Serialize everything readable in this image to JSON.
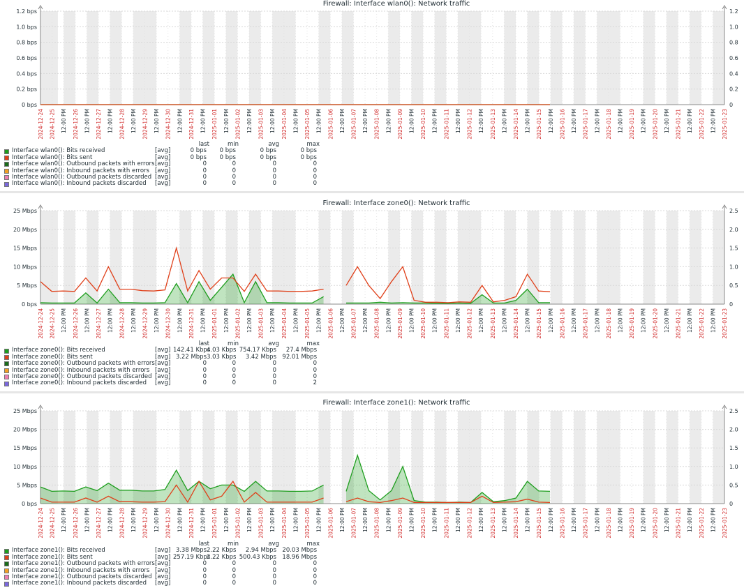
{
  "panels": [
    {
      "title": "Firewall: Interface wlan0(): Network traffic",
      "left_ticks": [
        "0 bps",
        "0.2 bps",
        "0.4 bps",
        "0.6 bps",
        "0.8 bps",
        "1.0 bps",
        "1.2 bps"
      ],
      "right_ticks": [
        "0",
        "0.2",
        "0.4",
        "0.6",
        "0.8",
        "1.0",
        "1.2"
      ],
      "legend_headers": [
        "last",
        "min",
        "avg",
        "max"
      ],
      "legend": [
        {
          "name": "Interface wlan0(): Bits received",
          "fn": "[avg]",
          "last": "0 bps",
          "min": "0 bps",
          "avg": "0 bps",
          "max": "0 bps",
          "color": "#1e9e1e"
        },
        {
          "name": "Interface wlan0(): Bits sent",
          "fn": "[avg]",
          "last": "0 bps",
          "min": "0 bps",
          "avg": "0 bps",
          "max": "0 bps",
          "color": "#e0401a"
        },
        {
          "name": "Interface wlan0(): Outbound packets with errors",
          "fn": "[avg]",
          "last": "0",
          "min": "0",
          "avg": "0",
          "max": "0",
          "color": "#1a6b1a"
        },
        {
          "name": "Interface wlan0(): Inbound packets with errors",
          "fn": "[avg]",
          "last": "0",
          "min": "0",
          "avg": "0",
          "max": "0",
          "color": "#f2a024"
        },
        {
          "name": "Interface wlan0(): Outbound packets discarded",
          "fn": "[avg]",
          "last": "0",
          "min": "0",
          "avg": "0",
          "max": "0",
          "color": "#ee7fb0"
        },
        {
          "name": "Interface wlan0(): Inbound packets discarded",
          "fn": "[avg]",
          "last": "0",
          "min": "0",
          "avg": "0",
          "max": "0",
          "color": "#7a68dd"
        }
      ]
    },
    {
      "title": "Firewall: Interface zone0(): Network traffic",
      "left_ticks": [
        "0 bps",
        "5 Mbps",
        "10 Mbps",
        "15 Mbps",
        "20 Mbps",
        "25 Mbps"
      ],
      "right_ticks": [
        "0",
        "0.5",
        "1.0",
        "1.5",
        "2.0",
        "2.5"
      ],
      "legend_headers": [
        "last",
        "min",
        "avg",
        "max"
      ],
      "legend": [
        {
          "name": "Interface zone0(): Bits received",
          "fn": "[avg]",
          "last": "142.41 Kbps",
          "min": "4.03 Kbps",
          "avg": "754.17 Kbps",
          "max": "27.4 Mbps",
          "color": "#1e9e1e"
        },
        {
          "name": "Interface zone0(): Bits sent",
          "fn": "[avg]",
          "last": "3.22 Mbps",
          "min": "3.03 Kbps",
          "avg": "3.42 Mbps",
          "max": "92.01 Mbps",
          "color": "#e0401a"
        },
        {
          "name": "Interface zone0(): Outbound packets with errors",
          "fn": "[avg]",
          "last": "0",
          "min": "0",
          "avg": "0",
          "max": "0",
          "color": "#1a6b1a"
        },
        {
          "name": "Interface zone0(): Inbound packets with errors",
          "fn": "[avg]",
          "last": "0",
          "min": "0",
          "avg": "0",
          "max": "0",
          "color": "#f2a024"
        },
        {
          "name": "Interface zone0(): Outbound packets discarded",
          "fn": "[avg]",
          "last": "0",
          "min": "0",
          "avg": "0",
          "max": "0",
          "color": "#ee7fb0"
        },
        {
          "name": "Interface zone0(): Inbound packets discarded",
          "fn": "[avg]",
          "last": "0",
          "min": "0",
          "avg": "0",
          "max": "2",
          "color": "#7a68dd"
        }
      ]
    },
    {
      "title": "Firewall: Interface zone1(): Network traffic",
      "left_ticks": [
        "0 bps",
        "5 Mbps",
        "10 Mbps",
        "15 Mbps",
        "20 Mbps",
        "25 Mbps"
      ],
      "right_ticks": [
        "0",
        "0.5",
        "1.0",
        "1.5",
        "2.0",
        "2.5"
      ],
      "legend_headers": [
        "last",
        "min",
        "avg",
        "max"
      ],
      "legend": [
        {
          "name": "Interface zone1(): Bits received",
          "fn": "[avg]",
          "last": "3.38 Mbps",
          "min": "2.22 Kbps",
          "avg": "2.94 Mbps",
          "max": "20.03 Mbps",
          "color": "#1e9e1e"
        },
        {
          "name": "Interface zone1(): Bits sent",
          "fn": "[avg]",
          "last": "257.19 Kbps",
          "min": "2.22 Kbps",
          "avg": "500.43 Kbps",
          "max": "18.96 Mbps",
          "color": "#e0401a"
        },
        {
          "name": "Interface zone1(): Outbound packets with errors",
          "fn": "[avg]",
          "last": "0",
          "min": "0",
          "avg": "0",
          "max": "0",
          "color": "#1a6b1a"
        },
        {
          "name": "Interface zone1(): Inbound packets with errors",
          "fn": "[avg]",
          "last": "0",
          "min": "0",
          "avg": "0",
          "max": "0",
          "color": "#f2a024"
        },
        {
          "name": "Interface zone1(): Outbound packets discarded",
          "fn": "[avg]",
          "last": "0",
          "min": "0",
          "avg": "0",
          "max": "0",
          "color": "#ee7fb0"
        },
        {
          "name": "Interface zone1(): Inbound packets discarded",
          "fn": "[avg]",
          "last": "0",
          "min": "0",
          "avg": "0",
          "max": "0",
          "color": "#7a68dd"
        }
      ]
    }
  ],
  "chart_data": [
    {
      "type": "area",
      "title": "Firewall: Interface wlan0(): Network traffic",
      "x_labels": [
        "2024-12-24",
        "2024-12-25",
        "12:00 PM",
        "2024-12-26",
        "12:00 PM",
        "2024-12-27",
        "12:00 PM",
        "2024-12-28",
        "12:00 PM",
        "2024-12-29",
        "12:00 PM",
        "2024-12-30",
        "12:00 PM",
        "2024-12-31",
        "12:00 PM",
        "2025-01-01",
        "12:00 PM",
        "2025-01-02",
        "12:00 PM",
        "2025-01-03",
        "12:00 PM",
        "2025-01-04",
        "12:00 PM",
        "2025-01-05",
        "12:00 PM",
        "2025-01-06",
        "12:00 PM",
        "2025-01-07",
        "12:00 PM",
        "2025-01-08",
        "12:00 PM",
        "2025-01-09",
        "12:00 PM",
        "2025-01-10",
        "12:00 PM",
        "2025-01-11",
        "12:00 PM",
        "2025-01-12",
        "12:00 PM",
        "2025-01-13",
        "12:00 PM",
        "2025-01-14",
        "12:00 PM",
        "2025-01-15",
        "12:00 PM",
        "2025-01-16",
        "12:00 PM",
        "2025-01-17",
        "12:00 PM",
        "2025-01-18",
        "12:00 PM",
        "2025-01-19",
        "12:00 PM",
        "2025-01-20",
        "12:00 PM",
        "2025-01-21",
        "12:00 PM",
        "2025-01-22",
        "12:00 PM",
        "2025-01-23"
      ],
      "ylim": [
        0,
        1.2
      ],
      "y2lim": [
        0,
        1.2
      ],
      "series": [
        {
          "name": "Interface wlan0(): Bits received",
          "color": "#1e9e1e",
          "values": [
            0,
            0,
            0,
            0,
            0,
            0,
            0,
            0,
            0,
            0,
            0,
            0,
            0,
            0,
            0,
            0,
            0,
            0,
            0,
            0,
            0,
            0,
            0,
            0,
            0,
            0,
            0,
            0,
            0,
            0,
            0,
            0,
            0,
            0,
            0,
            0,
            0,
            0,
            0,
            0,
            0,
            0,
            0,
            0,
            0,
            0
          ]
        },
        {
          "name": "Interface wlan0(): Bits sent",
          "color": "#e0401a",
          "values": [
            0,
            0,
            0,
            0,
            0,
            0,
            0,
            0,
            0,
            0,
            0,
            0,
            0,
            0,
            0,
            0,
            0,
            0,
            0,
            0,
            0,
            0,
            0,
            0,
            0,
            0,
            0,
            0,
            0,
            0,
            0,
            0,
            0,
            0,
            0,
            0,
            0,
            0,
            0,
            0,
            0,
            0,
            0,
            0,
            0,
            0
          ]
        }
      ]
    },
    {
      "type": "area",
      "title": "Firewall: Interface zone0(): Network traffic",
      "x_labels": [
        "2024-12-24",
        "2024-12-25",
        "12:00 PM",
        "2024-12-26",
        "12:00 PM",
        "2024-12-27",
        "12:00 PM",
        "2024-12-28",
        "12:00 PM",
        "2024-12-29",
        "12:00 PM",
        "2024-12-30",
        "12:00 PM",
        "2024-12-31",
        "12:00 PM",
        "2025-01-01",
        "12:00 PM",
        "2025-01-02",
        "12:00 PM",
        "2025-01-03",
        "12:00 PM",
        "2025-01-04",
        "12:00 PM",
        "2025-01-05",
        "12:00 PM",
        "2025-01-06",
        "12:00 PM",
        "2025-01-07",
        "12:00 PM",
        "2025-01-08",
        "12:00 PM",
        "2025-01-09",
        "12:00 PM",
        "2025-01-10",
        "12:00 PM",
        "2025-01-11",
        "12:00 PM",
        "2025-01-12",
        "12:00 PM",
        "2025-01-13",
        "12:00 PM",
        "2025-01-14",
        "12:00 PM",
        "2025-01-15",
        "12:00 PM",
        "2025-01-16",
        "12:00 PM",
        "2025-01-17",
        "12:00 PM",
        "2025-01-18",
        "12:00 PM",
        "2025-01-19",
        "12:00 PM",
        "2025-01-20",
        "12:00 PM",
        "2025-01-21",
        "12:00 PM",
        "2025-01-22",
        "12:00 PM",
        "2025-01-23"
      ],
      "ylim": [
        0,
        25
      ],
      "y2lim": [
        0,
        2.5
      ],
      "series": [
        {
          "name": "Interface zone0(): Bits received",
          "color": "#1e9e1e",
          "values": [
            0.4,
            0.3,
            0.3,
            0.3,
            3,
            0.3,
            4,
            0.4,
            0.4,
            0.3,
            0.3,
            0.4,
            5.5,
            0.4,
            6,
            1,
            4.5,
            8,
            0.4,
            6,
            0.4,
            0.4,
            0.3,
            0.3,
            0.3,
            2,
            null,
            0.3,
            0.3,
            0.3,
            0.5,
            0.3,
            0.4,
            0.3,
            0.3,
            0.2,
            0.2,
            0.3,
            0.2,
            2.5,
            0.3,
            0.3,
            1,
            4,
            0.4,
            0.4
          ]
        },
        {
          "name": "Interface zone0(): Bits sent",
          "color": "#e0401a",
          "values": [
            6,
            3.4,
            3.5,
            3.4,
            7,
            3.5,
            10,
            4,
            4,
            3.6,
            3.5,
            3.8,
            15,
            3.5,
            9,
            4,
            7,
            7,
            3.4,
            8,
            3.5,
            3.5,
            3.4,
            3.4,
            3.5,
            4,
            null,
            5,
            10,
            5,
            1.5,
            6,
            10,
            1,
            0.5,
            0.5,
            0.4,
            0.6,
            0.5,
            5,
            0.6,
            1,
            2,
            8,
            3.5,
            3.3
          ]
        }
      ]
    },
    {
      "type": "area",
      "title": "Firewall: Interface zone1(): Network traffic",
      "x_labels": [
        "2024-12-24",
        "2024-12-25",
        "12:00 PM",
        "2024-12-26",
        "12:00 PM",
        "2024-12-27",
        "12:00 PM",
        "2024-12-28",
        "12:00 PM",
        "2024-12-29",
        "12:00 PM",
        "2024-12-30",
        "12:00 PM",
        "2024-12-31",
        "12:00 PM",
        "2025-01-01",
        "12:00 PM",
        "2025-01-02",
        "12:00 PM",
        "2025-01-03",
        "12:00 PM",
        "2025-01-04",
        "12:00 PM",
        "2025-01-05",
        "12:00 PM",
        "2025-01-06",
        "12:00 PM",
        "2025-01-07",
        "12:00 PM",
        "2025-01-08",
        "12:00 PM",
        "2025-01-09",
        "12:00 PM",
        "2025-01-10",
        "12:00 PM",
        "2025-01-11",
        "12:00 PM",
        "2025-01-12",
        "12:00 PM",
        "2025-01-13",
        "12:00 PM",
        "2025-01-14",
        "12:00 PM",
        "2025-01-15",
        "12:00 PM",
        "2025-01-16",
        "12:00 PM",
        "2025-01-17",
        "12:00 PM",
        "2025-01-18",
        "12:00 PM",
        "2025-01-19",
        "12:00 PM",
        "2025-01-20",
        "12:00 PM",
        "2025-01-21",
        "12:00 PM",
        "2025-01-22",
        "12:00 PM",
        "2025-01-23"
      ],
      "ylim": [
        0,
        25
      ],
      "y2lim": [
        0,
        2.5
      ],
      "series": [
        {
          "name": "Interface zone1(): Bits received",
          "color": "#1e9e1e",
          "values": [
            4.5,
            3.3,
            3.4,
            3.3,
            4.5,
            3.5,
            5.5,
            3.6,
            3.6,
            3.4,
            3.4,
            3.8,
            9,
            3.5,
            6,
            4,
            5,
            5,
            3.3,
            6,
            3.4,
            3.4,
            3.3,
            3.3,
            3.4,
            5,
            null,
            3.3,
            13,
            3.5,
            1,
            3.5,
            10,
            0.8,
            0.4,
            0.4,
            0.3,
            0.4,
            0.3,
            3,
            0.5,
            0.8,
            1.5,
            6,
            3.4,
            3.3
          ]
        },
        {
          "name": "Interface zone1(): Bits sent",
          "color": "#e0401a",
          "values": [
            1.5,
            0.4,
            0.4,
            0.4,
            1.5,
            0.4,
            2,
            0.5,
            0.5,
            0.4,
            0.4,
            0.5,
            5,
            0.4,
            6,
            1,
            2,
            6,
            0.4,
            3,
            0.4,
            0.4,
            0.4,
            0.4,
            0.4,
            1.5,
            null,
            0.5,
            1.5,
            0.5,
            0.3,
            0.8,
            1.5,
            0.3,
            0.3,
            0.3,
            0.3,
            0.3,
            0.3,
            2,
            0.3,
            0.4,
            0.5,
            1.2,
            0.4,
            0.3
          ]
        }
      ]
    }
  ]
}
